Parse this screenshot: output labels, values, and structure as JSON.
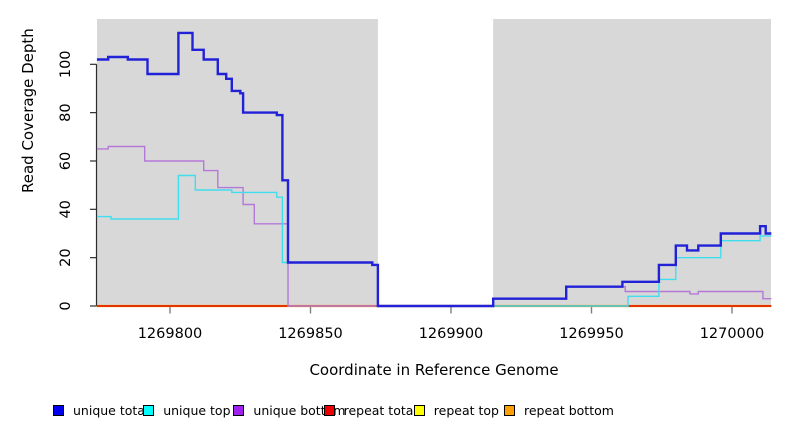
{
  "chart_data": {
    "type": "line",
    "subtype": "step-coverage",
    "title": "",
    "xlabel": "Coordinate in Reference Genome",
    "ylabel": "Read Coverage Depth",
    "xlim": [
      1269774,
      1270014
    ],
    "ylim": [
      0,
      118
    ],
    "x_ticks": [
      1269800,
      1269850,
      1269900,
      1269950,
      1270000
    ],
    "y_ticks": [
      0,
      20,
      40,
      60,
      80,
      100
    ],
    "grid": "off",
    "legend_position": "bottom",
    "plot_background": "#D8D8D8",
    "gap_band": {
      "note": "white unsequenced gap region",
      "from": 1269874,
      "to": 1269915,
      "color": "#FFFFFF"
    },
    "series": [
      {
        "name": "unique total",
        "color": "#2121D8",
        "legend_color": "#0000EE",
        "line_width": 2.4,
        "steps": [
          [
            1269774,
            102
          ],
          [
            1269778,
            103
          ],
          [
            1269785,
            102
          ],
          [
            1269792,
            96
          ],
          [
            1269803,
            113
          ],
          [
            1269808,
            106
          ],
          [
            1269812,
            102
          ],
          [
            1269817,
            96
          ],
          [
            1269820,
            94
          ],
          [
            1269822,
            89
          ],
          [
            1269825,
            88
          ],
          [
            1269826,
            80
          ],
          [
            1269838,
            79
          ],
          [
            1269840,
            52
          ],
          [
            1269842,
            18
          ],
          [
            1269872,
            17
          ],
          [
            1269874,
            0
          ],
          [
            1269915,
            3
          ],
          [
            1269941,
            8
          ],
          [
            1269961,
            10
          ],
          [
            1269974,
            17
          ],
          [
            1269980,
            25
          ],
          [
            1269984,
            23
          ],
          [
            1269988,
            25
          ],
          [
            1269996,
            30
          ],
          [
            1270010,
            33
          ],
          [
            1270012,
            30
          ],
          [
            1270014,
            30
          ]
        ]
      },
      {
        "name": "unique top",
        "color": "#3FDEEE",
        "legend_color": "#00FFFF",
        "line_width": 1.4,
        "steps": [
          [
            1269774,
            37
          ],
          [
            1269779,
            36
          ],
          [
            1269803,
            54
          ],
          [
            1269809,
            48
          ],
          [
            1269822,
            47
          ],
          [
            1269838,
            45
          ],
          [
            1269840,
            18
          ],
          [
            1269872,
            17
          ],
          [
            1269874,
            0
          ],
          [
            1269963,
            4
          ],
          [
            1269974,
            11
          ],
          [
            1269980,
            20
          ],
          [
            1269996,
            27
          ],
          [
            1270010,
            29
          ],
          [
            1270014,
            29
          ]
        ]
      },
      {
        "name": "unique bottom",
        "color": "#B478D8",
        "legend_color": "#A020F0",
        "line_width": 1.4,
        "steps": [
          [
            1269774,
            65
          ],
          [
            1269778,
            66
          ],
          [
            1269791,
            60
          ],
          [
            1269812,
            56
          ],
          [
            1269817,
            49
          ],
          [
            1269826,
            42
          ],
          [
            1269830,
            34
          ],
          [
            1269842,
            0
          ],
          [
            1269915,
            3
          ],
          [
            1269941,
            8
          ],
          [
            1269962,
            6
          ],
          [
            1269985,
            5
          ],
          [
            1269988,
            6
          ],
          [
            1270011,
            3
          ],
          [
            1270014,
            3
          ]
        ]
      },
      {
        "name": "repeat total",
        "color": "#DD0000",
        "legend_color": "#EE0000",
        "line_width": 1.4,
        "steps": [
          [
            1269774,
            0
          ],
          [
            1270014,
            0
          ]
        ]
      },
      {
        "name": "repeat top",
        "color": "#FFFF00",
        "legend_color": "#FFFF00",
        "line_width": 1.4,
        "steps": [
          [
            1269774,
            0
          ],
          [
            1270014,
            0
          ]
        ]
      },
      {
        "name": "repeat bottom",
        "color": "#FF9F00",
        "legend_color": "#FFA000",
        "line_width": 2.2,
        "steps": [
          [
            1269774,
            0
          ],
          [
            1270014,
            0
          ]
        ]
      }
    ]
  }
}
